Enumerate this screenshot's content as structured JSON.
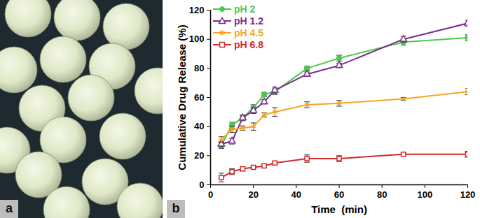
{
  "image_panel": {
    "label": "a"
  },
  "chart_data": {
    "type": "line",
    "annotations": [
      "b"
    ],
    "x_label": "Time  (min)",
    "y_label": "Cumulative Drug Release (%)",
    "x": [
      5,
      10,
      15,
      20,
      25,
      30,
      45,
      60,
      90,
      120
    ],
    "series": [
      {
        "name": "pH 2",
        "color": "#4cc94c",
        "marker": "circle",
        "values": [
          27,
          41,
          46,
          53,
          62,
          64,
          80,
          87,
          98,
          101
        ],
        "errors": [
          2,
          2,
          1.5,
          2,
          1.5,
          2,
          1.5,
          2,
          2,
          2
        ]
      },
      {
        "name": "pH 1.2",
        "color": "#7b2d8e",
        "marker": "triangle",
        "values": [
          28,
          30,
          46,
          51,
          57,
          65,
          76,
          82,
          100,
          111
        ],
        "errors": [
          2,
          2,
          2,
          2,
          1.5,
          2,
          1.5,
          1.5,
          2,
          2
        ]
      },
      {
        "name": "pH 4.5",
        "color": "#f5a623",
        "marker": "asterisk",
        "values": [
          31,
          38,
          39,
          40,
          48,
          50,
          55,
          56,
          59,
          64
        ],
        "errors": [
          2,
          2,
          1.5,
          2.5,
          1.5,
          3,
          2,
          2,
          1,
          2
        ]
      },
      {
        "name": "pH 6.8",
        "color": "#d6282a",
        "marker": "square",
        "values": [
          5,
          9,
          11,
          12,
          13,
          15,
          18,
          18,
          21,
          21
        ],
        "errors": [
          3,
          2,
          1.5,
          1,
          1,
          1,
          2.5,
          2,
          1,
          2
        ]
      }
    ],
    "xlim": [
      0,
      120
    ],
    "xticks": [
      0,
      20,
      40,
      60,
      80,
      100,
      120
    ],
    "ylim": [
      0,
      120
    ],
    "yticks": [
      0,
      20,
      40,
      60,
      80,
      100,
      120
    ],
    "grid": false,
    "legend": "upper left"
  }
}
